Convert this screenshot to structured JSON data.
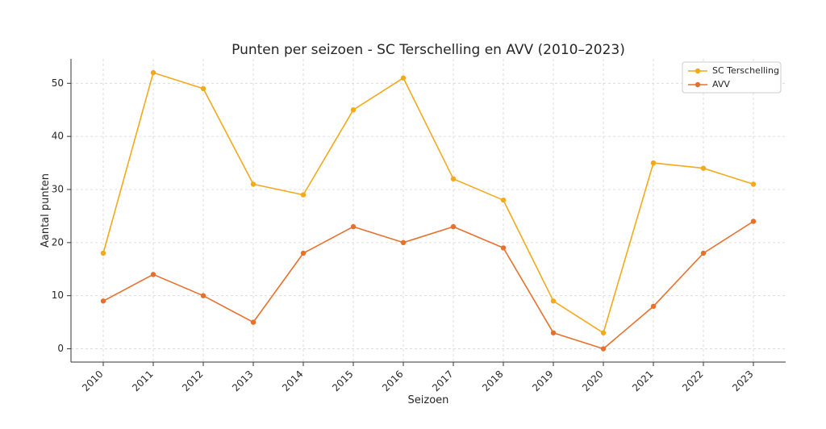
{
  "chart_data": {
    "type": "line",
    "title": "Punten per seizoen - SC Terschelling en AVV (2010–2023)",
    "xlabel": "Seizoen",
    "ylabel": "Aantal punten",
    "categories": [
      "2010",
      "2011",
      "2012",
      "2013",
      "2014",
      "2015",
      "2016",
      "2017",
      "2018",
      "2019",
      "2020",
      "2021",
      "2022",
      "2023"
    ],
    "ylim": [
      -2.5,
      54.6
    ],
    "yticks": [
      0,
      10,
      20,
      30,
      40,
      50
    ],
    "grid": true,
    "legend_position": "top-right",
    "series": [
      {
        "name": "SC Terschelling",
        "color": "#f4a91c",
        "values": [
          18,
          52,
          49,
          31,
          29,
          45,
          51,
          32,
          28,
          9,
          3,
          35,
          34,
          31
        ]
      },
      {
        "name": "AVV",
        "color": "#e7702c",
        "values": [
          9,
          14,
          10,
          5,
          18,
          23,
          20,
          23,
          19,
          3,
          0,
          8,
          18,
          24
        ]
      }
    ]
  }
}
